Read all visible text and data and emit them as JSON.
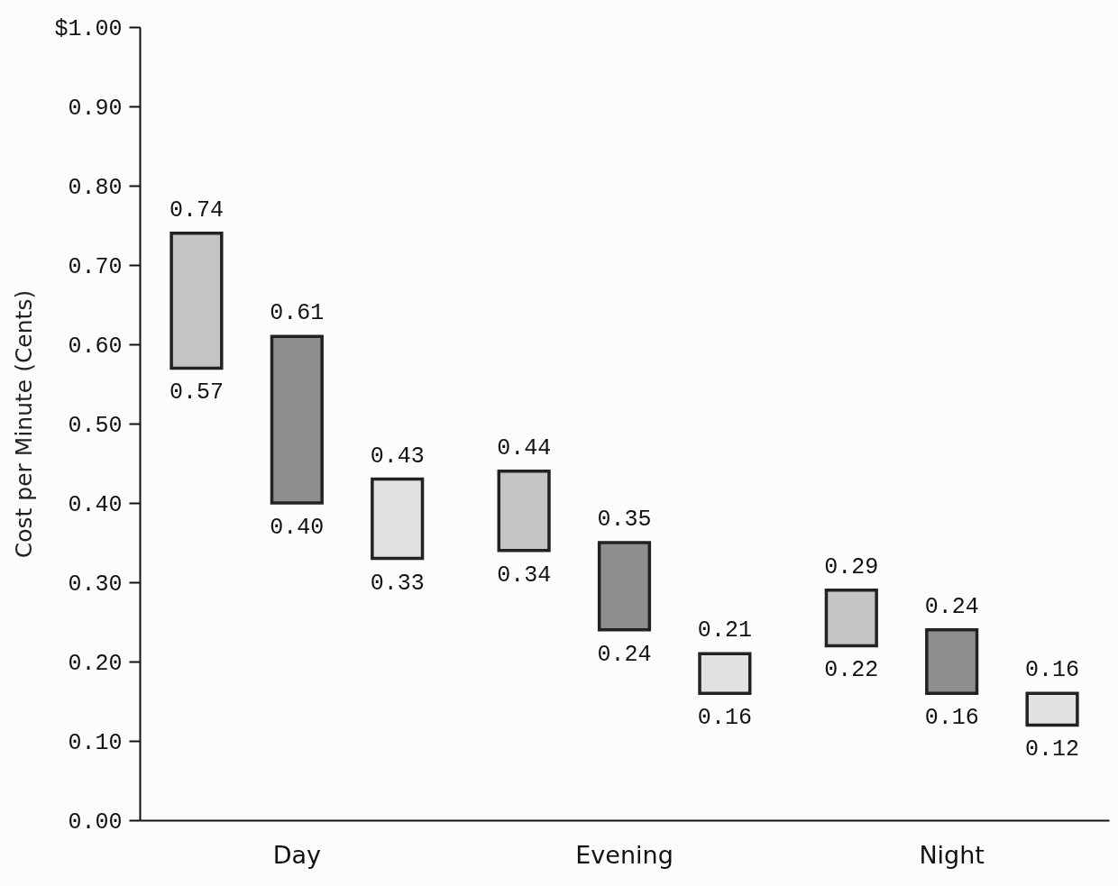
{
  "chart_data": {
    "type": "bar",
    "ylabel": "Cost per Minute (Cents)",
    "categories": [
      "Day",
      "Evening",
      "Night"
    ],
    "series": [
      {
        "color": "#c4c4c4",
        "base": [
          0.57,
          0.34,
          0.22
        ],
        "values": [
          0.17,
          0.1,
          0.07
        ]
      },
      {
        "color": "#8f8f8f",
        "base": [
          0.4,
          0.24,
          0.16
        ],
        "values": [
          0.21,
          0.11,
          0.08
        ]
      },
      {
        "color": "#e2e2e2",
        "base": [
          0.33,
          0.16,
          0.12
        ],
        "values": [
          0.1,
          0.05,
          0.04
        ]
      }
    ],
    "ylim": [
      0,
      1
    ],
    "yticks": [
      {
        "value": 0,
        "label": "0.00"
      },
      {
        "value": 0.1,
        "label": "0.10"
      },
      {
        "value": 0.2,
        "label": "0.20"
      },
      {
        "value": 0.3,
        "label": "0.30"
      },
      {
        "value": 0.4,
        "label": "0.40"
      },
      {
        "value": 0.5,
        "label": "0.50"
      },
      {
        "value": 0.6,
        "label": "0.60"
      },
      {
        "value": 0.7,
        "label": "0.70"
      },
      {
        "value": 0.8,
        "label": "0.80"
      },
      {
        "value": 0.9,
        "label": "0.90"
      },
      {
        "value": 1,
        "label": "$1.00"
      }
    ],
    "annotations": [
      "0.74",
      "0.57",
      "0.61",
      "0.40",
      "0.43",
      "0.33",
      "0.44",
      "0.34",
      "0.35",
      "0.24",
      "0.21",
      "0.16",
      "0.29",
      "0.22",
      "0.24",
      "0.16",
      "0.16",
      "0.12"
    ]
  }
}
